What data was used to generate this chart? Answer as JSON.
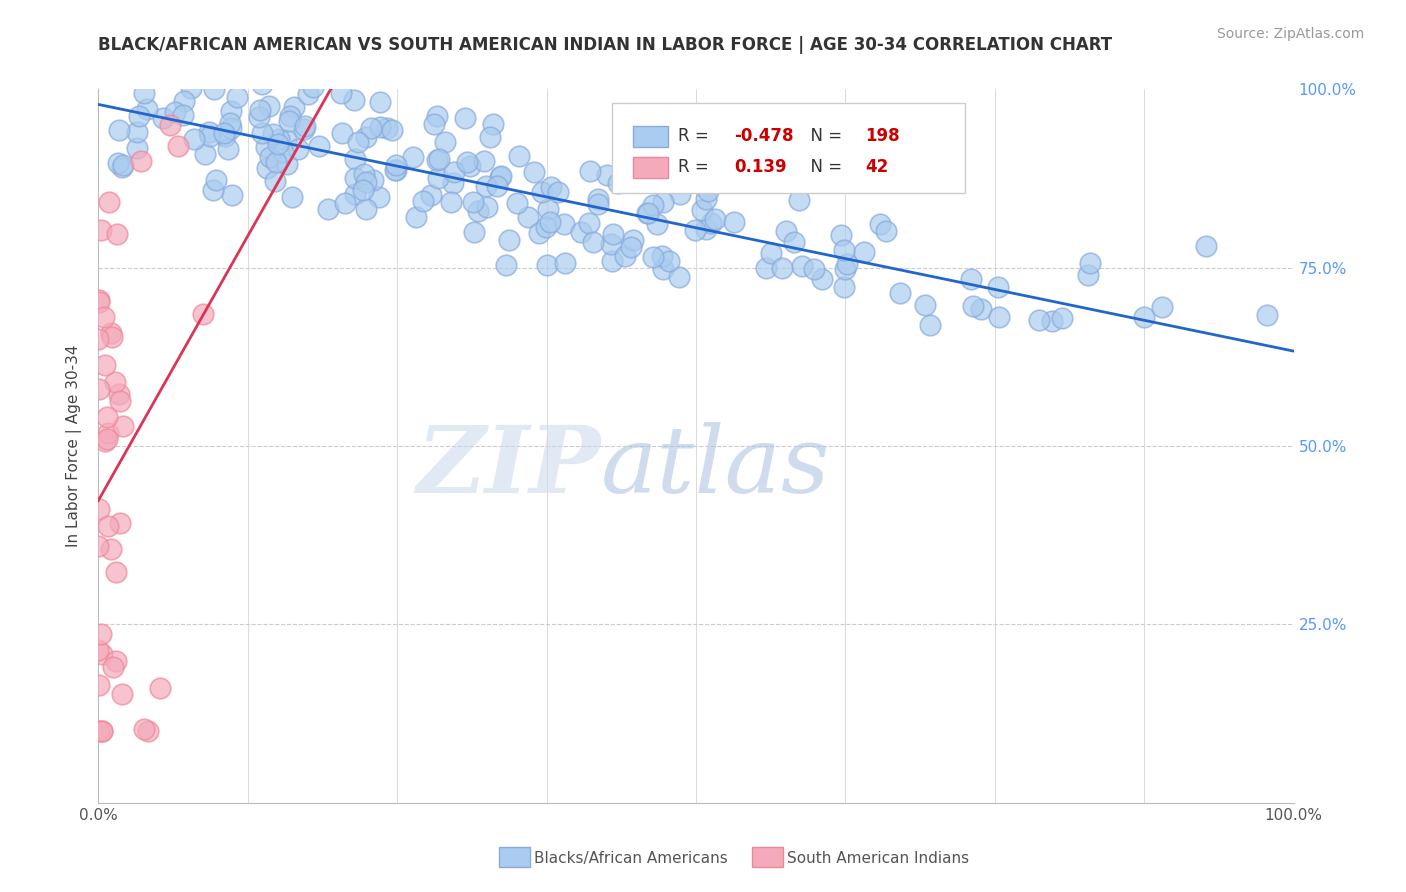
{
  "title": "BLACK/AFRICAN AMERICAN VS SOUTH AMERICAN INDIAN IN LABOR FORCE | AGE 30-34 CORRELATION CHART",
  "source": "Source: ZipAtlas.com",
  "ylabel": "In Labor Force | Age 30-34",
  "xlim": [
    0.0,
    1.0
  ],
  "ylim": [
    0.0,
    1.0
  ],
  "blue_R": -0.478,
  "blue_N": 198,
  "pink_R": 0.139,
  "pink_N": 42,
  "blue_color": "#aaccee",
  "pink_color": "#f4aabb",
  "blue_edge_color": "#88aadd",
  "pink_edge_color": "#ee8899",
  "blue_line_color": "#2266cc",
  "pink_line_color": "#dd3355",
  "legend_blue_label": "Blacks/African Americans",
  "legend_pink_label": "South American Indians",
  "background_color": "#ffffff",
  "grid_color": "#cccccc",
  "title_color": "#333333",
  "right_tick_color": "#5599ff",
  "blue_scatter_seed": 42,
  "pink_scatter_seed": 7,
  "blue_R_color": "#cc0000",
  "blue_N_color": "#cc0000",
  "pink_R_color": "#cc0000",
  "pink_N_color": "#cc0000"
}
